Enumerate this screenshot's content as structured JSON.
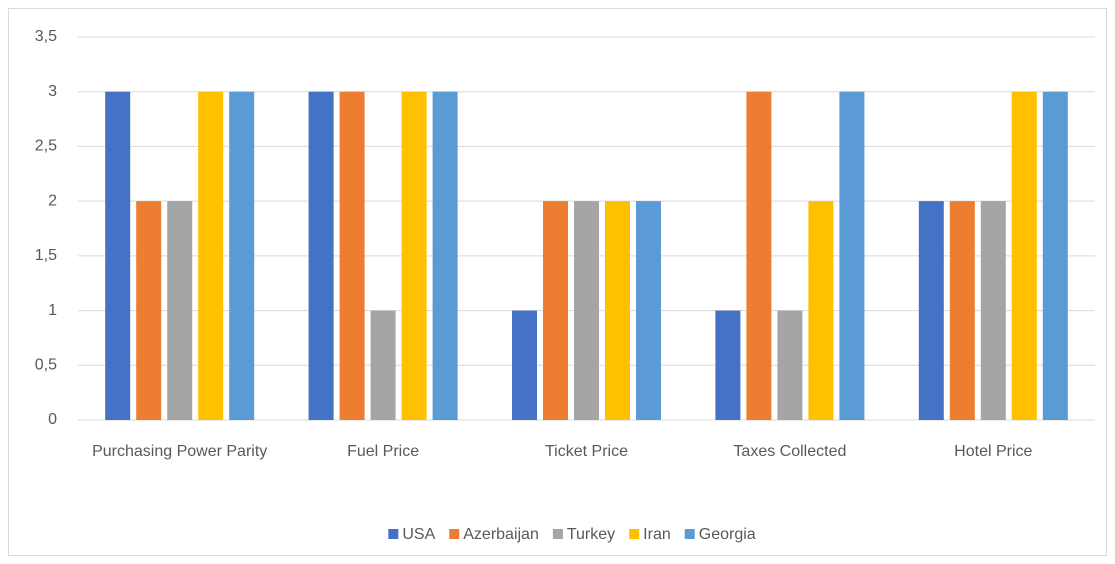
{
  "chart_data": {
    "type": "bar",
    "categories": [
      "Purchasing Power Parity",
      "Fuel Price",
      "Ticket Price",
      "Taxes Collected",
      "Hotel Price"
    ],
    "series": [
      {
        "name": "USA",
        "color": "#4472c4",
        "values": [
          3,
          3,
          1,
          1,
          2
        ]
      },
      {
        "name": "Azerbaijan",
        "color": "#ed7d31",
        "values": [
          2,
          3,
          2,
          3,
          2
        ]
      },
      {
        "name": "Turkey",
        "color": "#a5a5a5",
        "values": [
          2,
          1,
          2,
          1,
          2
        ]
      },
      {
        "name": "Iran",
        "color": "#ffc000",
        "values": [
          3,
          3,
          2,
          2,
          3
        ]
      },
      {
        "name": "Georgia",
        "color": "#5b9bd5",
        "values": [
          3,
          3,
          2,
          3,
          3
        ]
      }
    ],
    "ylim": [
      0,
      3.5
    ],
    "yticks": [
      0,
      {
        "value": 0.5,
        "label": "0,5"
      },
      1,
      {
        "value": 1.5,
        "label": "1,5"
      },
      2,
      {
        "value": 2.5,
        "label": "2,5"
      },
      3,
      {
        "value": 3.5,
        "label": "3,5"
      }
    ],
    "grid": true,
    "legend": "bottom"
  }
}
